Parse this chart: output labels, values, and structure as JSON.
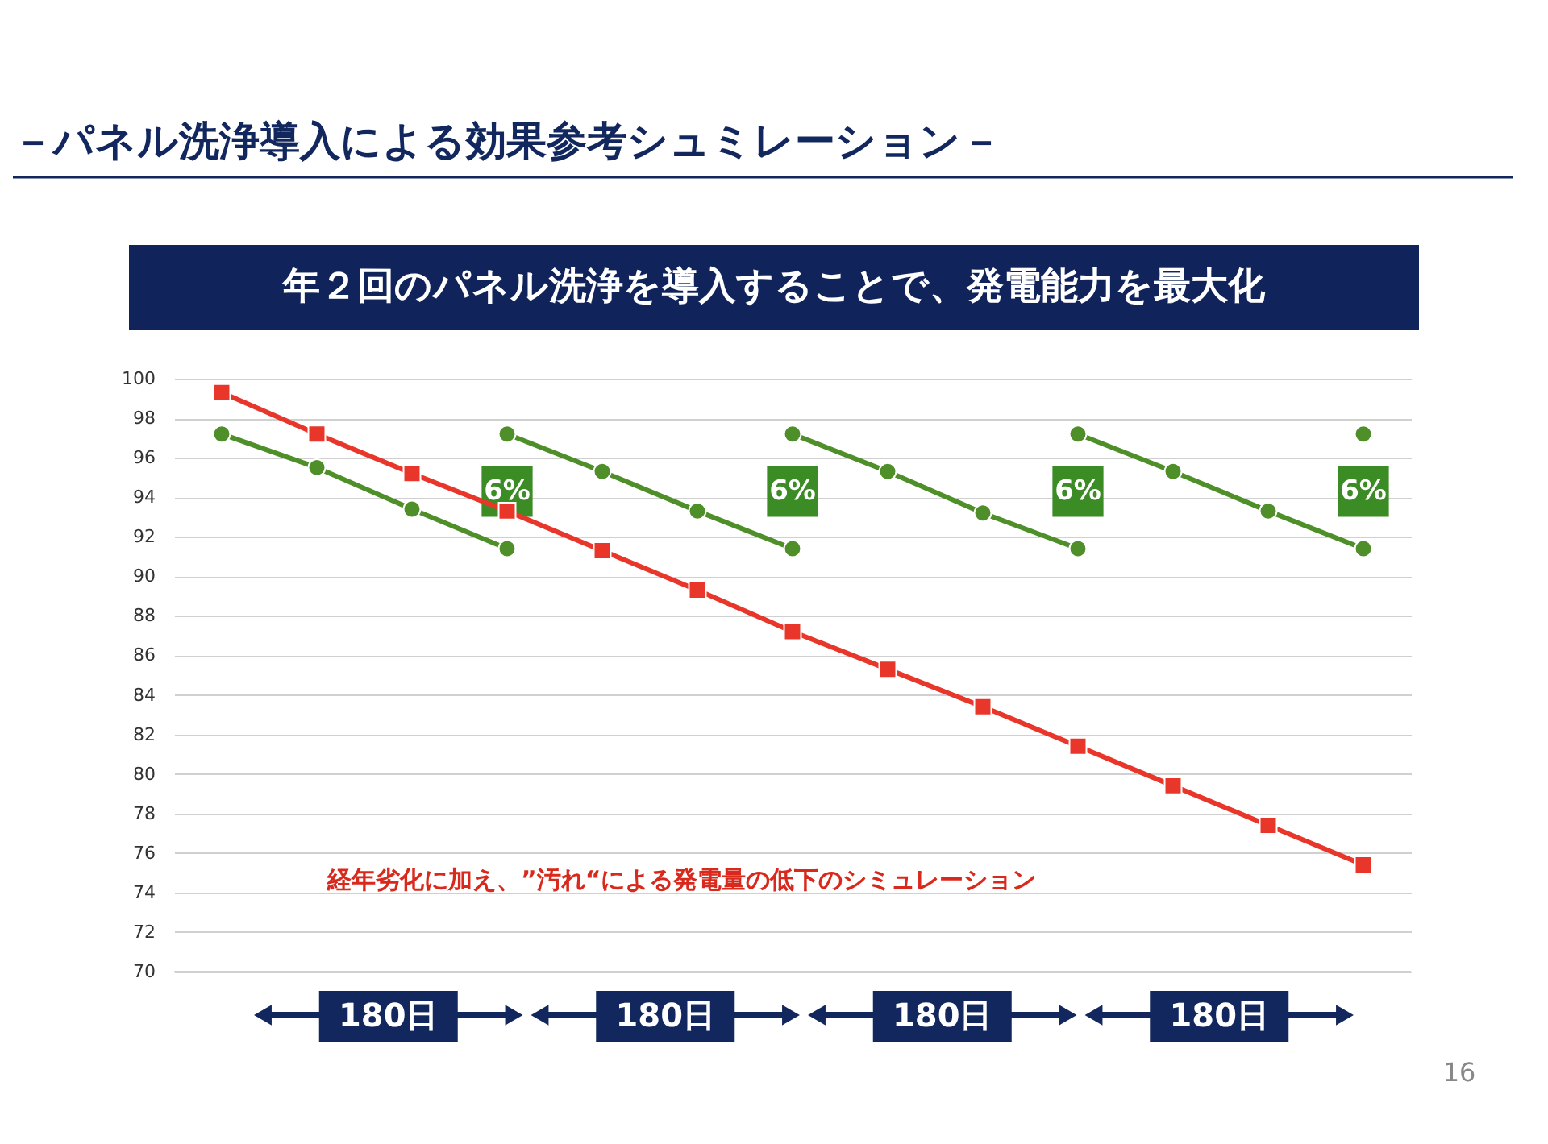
{
  "chart_data": {
    "type": "line",
    "title": "－パネル洗浄導入による効果参考シュミレーション－",
    "subtitle": "年２回のパネル洗浄を導入することで、発電能力を最大化",
    "categories": [
      null,
      null,
      null,
      null,
      null,
      null,
      null,
      null,
      null,
      null,
      null,
      null,
      null
    ],
    "ylim": [
      70,
      100
    ],
    "yticks": [
      70,
      72,
      74,
      76,
      78,
      80,
      82,
      84,
      86,
      88,
      90,
      92,
      94,
      96,
      98,
      100
    ],
    "tick_labels": "y",
    "grid": "y",
    "line_style": "solid",
    "series": [
      {
        "color": "#4e8f2a",
        "marker": "circle",
        "values": [
          97.2,
          95.5,
          93.4,
          91.4,
          null,
          null,
          null,
          null,
          null,
          null,
          null,
          null,
          null
        ]
      },
      {
        "color": "#4e8f2a",
        "marker": "circle",
        "values": [
          null,
          null,
          null,
          97.2,
          95.3,
          93.3,
          91.4,
          null,
          null,
          null,
          null,
          null,
          null
        ]
      },
      {
        "color": "#4e8f2a",
        "marker": "circle",
        "values": [
          null,
          null,
          null,
          null,
          null,
          null,
          97.2,
          95.3,
          93.2,
          91.4,
          null,
          null,
          null
        ]
      },
      {
        "color": "#4e8f2a",
        "marker": "circle",
        "values": [
          null,
          null,
          null,
          null,
          null,
          null,
          null,
          null,
          null,
          97.2,
          95.3,
          93.3,
          91.4
        ]
      },
      {
        "color": "#4e8f2a",
        "marker": "circle",
        "values": [
          null,
          null,
          null,
          null,
          null,
          null,
          null,
          null,
          null,
          null,
          null,
          null,
          97.2
        ]
      },
      {
        "color": "#e8372a",
        "marker": "square",
        "values": [
          99.3,
          97.2,
          95.2,
          93.3,
          91.3,
          89.3,
          87.2,
          85.3,
          83.4,
          81.4,
          79.4,
          77.4,
          75.4
        ]
      }
    ],
    "annotations": [
      {
        "text": "6%",
        "y": 94.3
      },
      {
        "text": "6%",
        "y": 94.3
      },
      {
        "text": "6%",
        "y": 94.3
      },
      {
        "text": "6%",
        "y": 94.3
      },
      "経年劣化に加え、”汚れ“による発電量の低下のシミュレーション",
      "180日",
      "180日",
      "180日",
      "180日",
      "16"
    ]
  }
}
